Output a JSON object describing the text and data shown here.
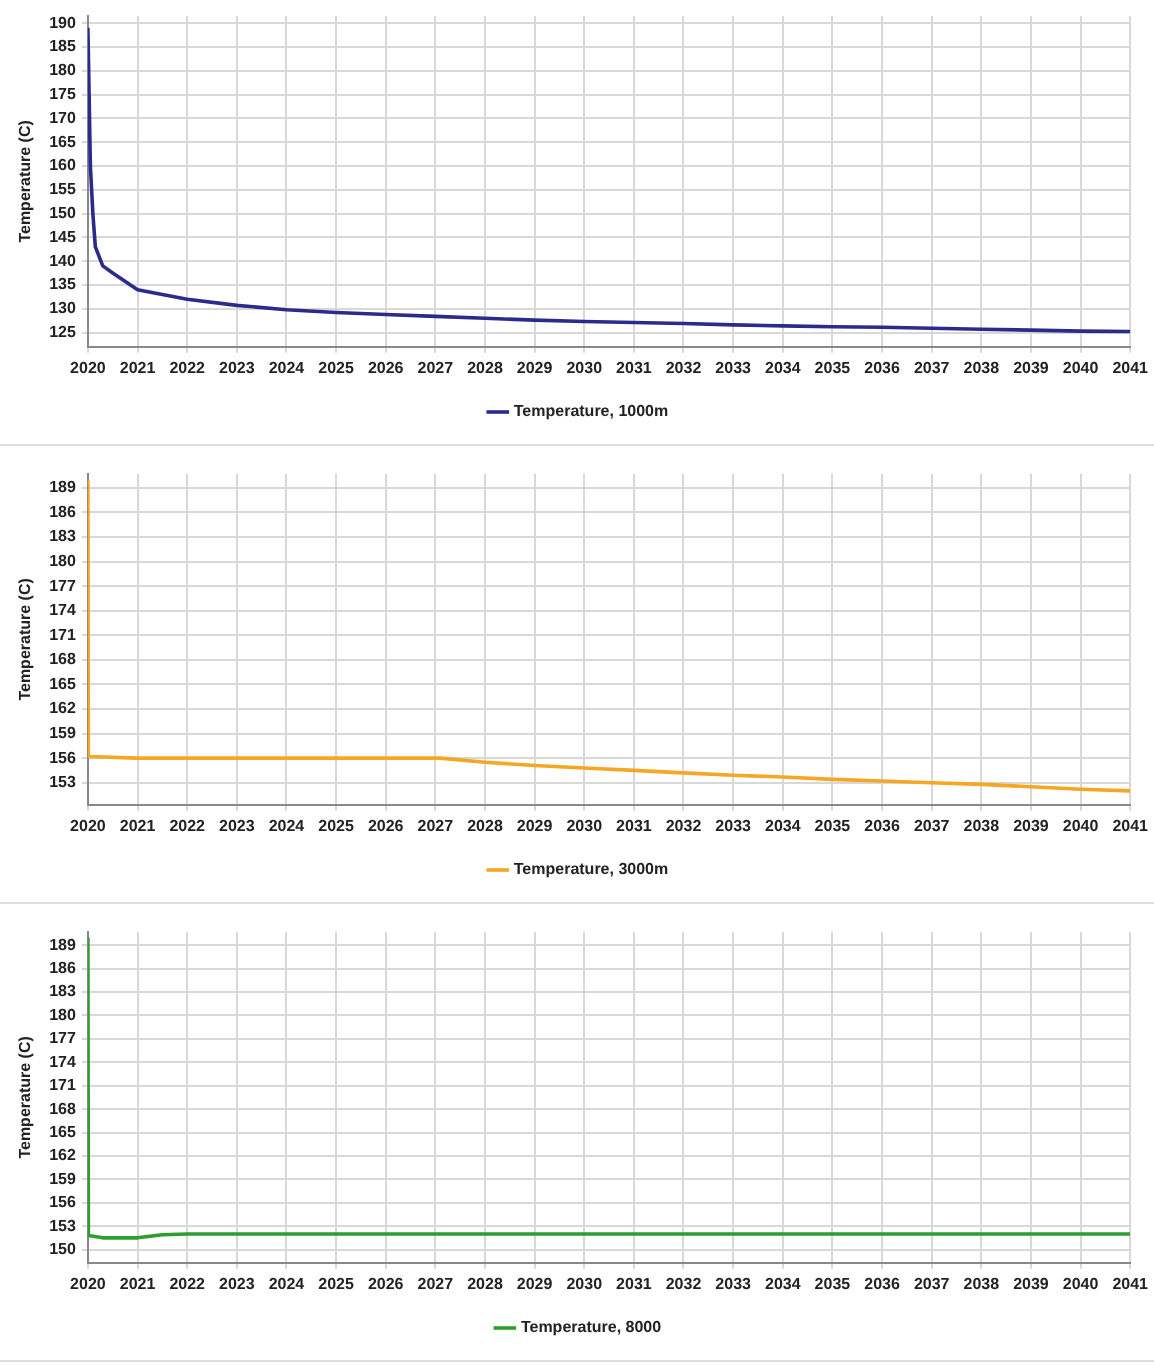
{
  "chart_data": [
    {
      "type": "line",
      "ylabel": "Temperature (C)",
      "xlim": [
        2020,
        2041
      ],
      "xticks": [
        2020,
        2021,
        2022,
        2023,
        2024,
        2025,
        2026,
        2027,
        2028,
        2029,
        2030,
        2031,
        2032,
        2033,
        2034,
        2035,
        2036,
        2037,
        2038,
        2039,
        2040,
        2041
      ],
      "ylim": [
        122,
        191.5
      ],
      "yticks": [
        125,
        130,
        135,
        140,
        145,
        150,
        155,
        160,
        165,
        170,
        175,
        180,
        185,
        190
      ],
      "grid": true,
      "legend": "bottom",
      "marker": "none",
      "x": [
        2020,
        2020.05,
        2020.1,
        2020.15,
        2020.3,
        2020.5,
        2021,
        2022,
        2023,
        2024,
        2025,
        2026,
        2027,
        2028,
        2029,
        2030,
        2031,
        2032,
        2033,
        2034,
        2035,
        2036,
        2037,
        2038,
        2039,
        2040,
        2041
      ],
      "series": [
        {
          "name": "Temperature, 1000m",
          "color": "#2b2b8c",
          "values": [
            189,
            160,
            150,
            143,
            139,
            137.5,
            134,
            132,
            130.7,
            129.8,
            129.2,
            128.8,
            128.4,
            128,
            127.6,
            127.3,
            127.1,
            126.9,
            126.6,
            126.4,
            126.2,
            126.1,
            125.9,
            125.7,
            125.5,
            125.3,
            125.2
          ]
        }
      ]
    },
    {
      "type": "line",
      "ylabel": "Temperature (C)",
      "xlim": [
        2020,
        2041
      ],
      "xticks": [
        2020,
        2021,
        2022,
        2023,
        2024,
        2025,
        2026,
        2027,
        2028,
        2029,
        2030,
        2031,
        2032,
        2033,
        2034,
        2035,
        2036,
        2037,
        2038,
        2039,
        2040,
        2041
      ],
      "ylim": [
        150.3,
        190.7
      ],
      "yticks": [
        153,
        156,
        159,
        162,
        165,
        168,
        171,
        174,
        177,
        180,
        183,
        186,
        189
      ],
      "grid": true,
      "legend": "bottom",
      "marker": "none",
      "x": [
        2020,
        2020.01,
        2021,
        2022,
        2023,
        2024,
        2025,
        2026,
        2027.1,
        2028,
        2029,
        2030,
        2031,
        2032,
        2033,
        2034,
        2035,
        2036,
        2037,
        2038,
        2039,
        2040,
        2041
      ],
      "series": [
        {
          "name": "Temperature, 3000m",
          "color": "#f5a623",
          "values": [
            190,
            156.2,
            156,
            156,
            156,
            156,
            156,
            156,
            156,
            155.5,
            155.1,
            154.8,
            154.5,
            154.2,
            153.9,
            153.7,
            153.4,
            153.2,
            153,
            152.8,
            152.5,
            152.2,
            152
          ]
        }
      ]
    },
    {
      "type": "line",
      "ylabel": "Temperature (C)",
      "xlim": [
        2020,
        2041
      ],
      "xticks": [
        2020,
        2021,
        2022,
        2023,
        2024,
        2025,
        2026,
        2027,
        2028,
        2029,
        2030,
        2031,
        2032,
        2033,
        2034,
        2035,
        2036,
        2037,
        2038,
        2039,
        2040,
        2041
      ],
      "ylim": [
        148.3,
        190.7
      ],
      "yticks": [
        150,
        153,
        156,
        159,
        162,
        165,
        168,
        171,
        174,
        177,
        180,
        183,
        186,
        189
      ],
      "grid": true,
      "legend": "bottom",
      "marker": "none",
      "x": [
        2020,
        2020.01,
        2020.3,
        2021,
        2021.5,
        2022,
        2025,
        2030,
        2035,
        2041
      ],
      "series": [
        {
          "name": "Temperature, 8000",
          "color": "#2e9e2e",
          "values": [
            190,
            151.8,
            151.5,
            151.5,
            151.9,
            152,
            152,
            152,
            152,
            152
          ]
        }
      ]
    }
  ]
}
